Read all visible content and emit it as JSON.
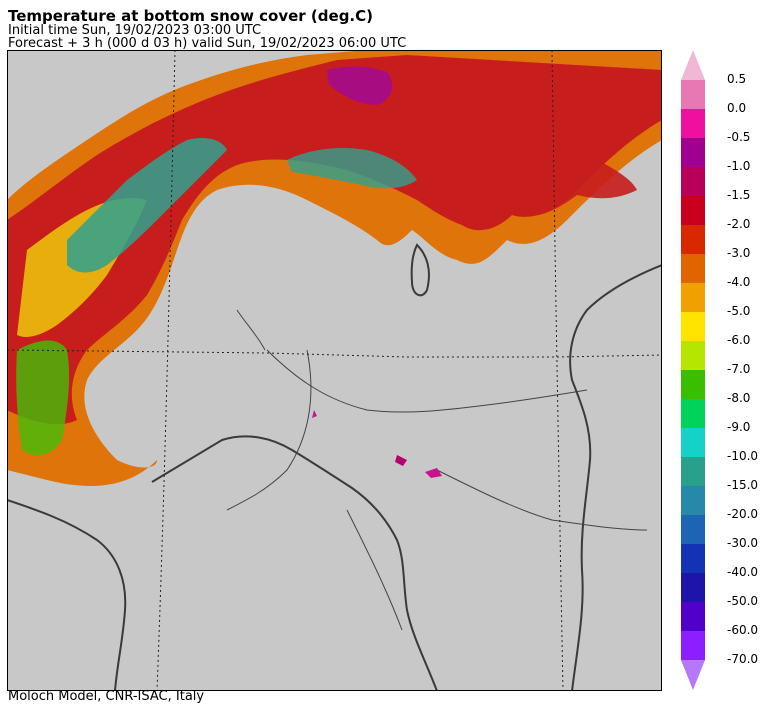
{
  "header": {
    "title": "Temperature at bottom snow cover (deg.C)",
    "initial_time": "Initial time  Sun, 19/02/2023  03:00 UTC",
    "forecast": "Forecast  +   3 h  (000 d 03 h)  valid Sun, 19/02/2023 06:00 UTC"
  },
  "footer": {
    "credit": "Moloch Model, CNR-ISAC, Italy"
  },
  "map": {
    "background_color": "#c8c8c8",
    "border_color": "#3a3a3a",
    "coastline_color": "#555555",
    "grid_color": "#222222"
  },
  "legend": {
    "labels": [
      "0.5",
      "0.0",
      "-0.5",
      "-1.0",
      "-1.5",
      "-2.0",
      "-3.0",
      "-4.0",
      "-5.0",
      "-6.0",
      "-7.0",
      "-8.0",
      "-9.0",
      "-10.0",
      "-15.0",
      "-20.0",
      "-30.0",
      "-40.0",
      "-50.0",
      "-60.0",
      "-70.0"
    ],
    "colors": [
      "#f0b8d4",
      "#e878b4",
      "#f010a0",
      "#a00090",
      "#b8005a",
      "#c8001e",
      "#d82800",
      "#e06400",
      "#f0a000",
      "#ffe400",
      "#b4e600",
      "#3cbe00",
      "#00d25a",
      "#14d2c8",
      "#28a08c",
      "#2888aa",
      "#1e64b4",
      "#1432b4",
      "#1e14aa",
      "#5000c8",
      "#8c1eff",
      "#b478f8"
    ]
  }
}
